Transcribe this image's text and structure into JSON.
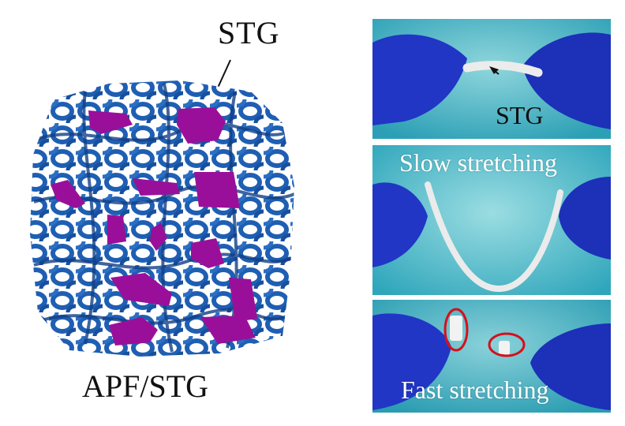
{
  "left_panel": {
    "top_label": "STG",
    "bottom_label": "APF/STG",
    "colors": {
      "network": "#1f5fb3",
      "network_dark": "#123f86",
      "inclusion": "#9a0f9a"
    }
  },
  "photos": [
    {
      "caption": "STG",
      "name": "stg-photo"
    },
    {
      "caption": "Slow stretching",
      "name": "slow-stretching-photo"
    },
    {
      "caption": "Fast stretching",
      "name": "fast-stretching-photo"
    }
  ],
  "colors": {
    "glove": "#1f35c8",
    "background_teal": "#3fb5c8",
    "highlight_circle": "#d6101a"
  }
}
